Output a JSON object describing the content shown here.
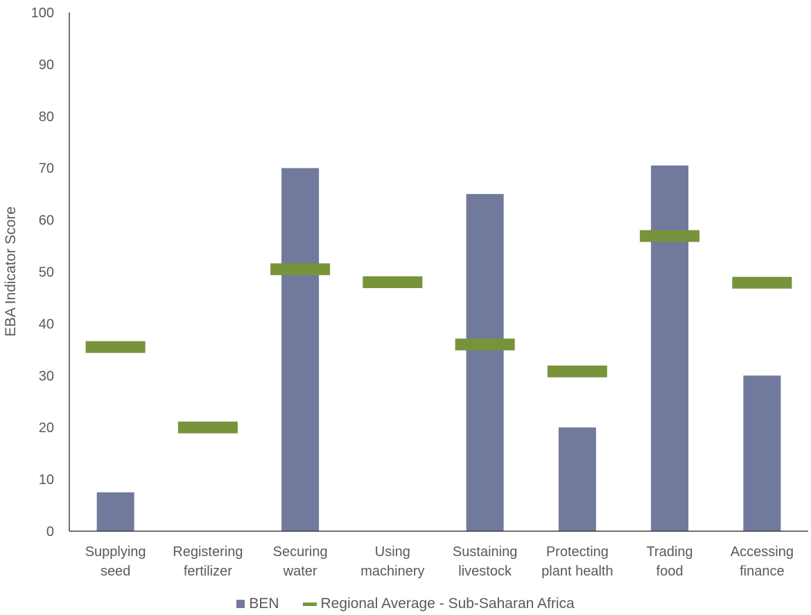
{
  "chart_data": {
    "type": "bar",
    "title": "",
    "xlabel": "",
    "ylabel": "EBA Indicator Score",
    "ylim": [
      0,
      100
    ],
    "yticks": [
      0,
      10,
      20,
      30,
      40,
      50,
      60,
      70,
      80,
      90,
      100
    ],
    "grid": false,
    "legend_position": "bottom",
    "categories": [
      [
        "Supplying",
        "seed"
      ],
      [
        "Registering",
        "fertilizer"
      ],
      [
        "Securing",
        "water"
      ],
      [
        "Using",
        "machinery"
      ],
      [
        "Sustaining",
        "livestock"
      ],
      [
        "Protecting",
        "plant health"
      ],
      [
        "Trading",
        "food"
      ],
      [
        "Accessing",
        "finance"
      ]
    ],
    "series": [
      {
        "name": "BEN",
        "kind": "bar",
        "color": "#717a9c",
        "values": [
          7.5,
          0,
          70,
          0,
          65,
          20,
          70.5,
          30
        ]
      },
      {
        "name": "Regional Average - Sub-Saharan Africa",
        "kind": "marker",
        "color": "#77933c",
        "values": [
          35.5,
          20,
          50.5,
          48,
          36,
          30.8,
          56.9,
          47.9
        ]
      }
    ]
  }
}
